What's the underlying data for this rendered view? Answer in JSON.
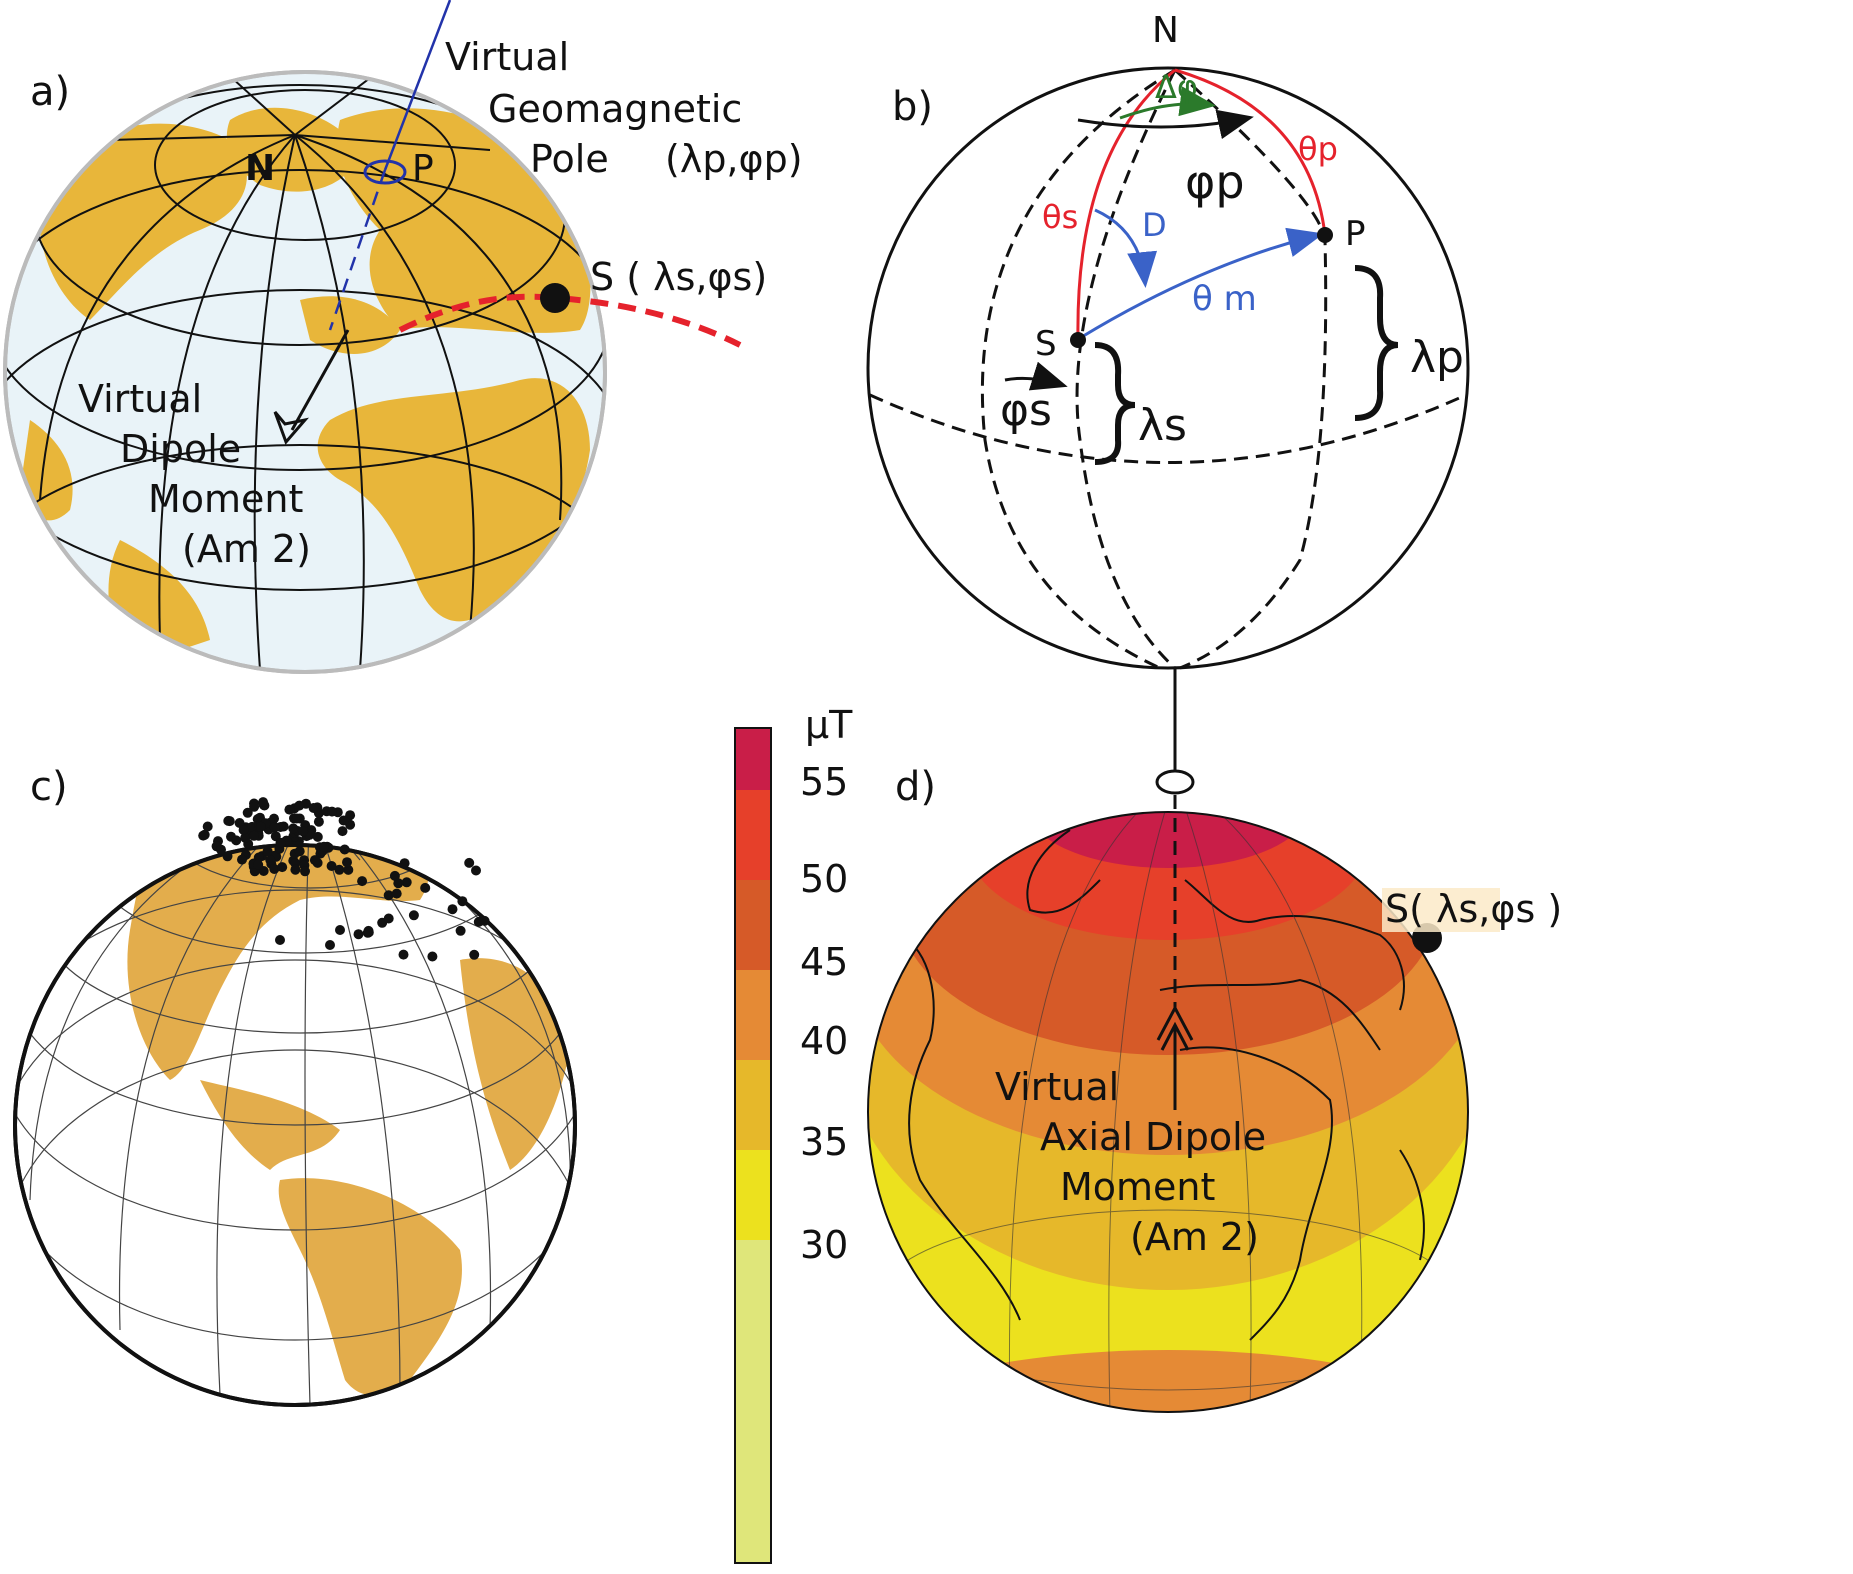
{
  "panels": {
    "a": {
      "label": "a)",
      "north": "N",
      "pole": "P",
      "vgp_line1": "Virtual",
      "vgp_line2": "Geomagnetic",
      "vgp_line3": "Pole",
      "vgp_coords": "(λp,φp)",
      "site": "S ( λs,φs)",
      "vdm_line1": "Virtual",
      "vdm_line2": "Dipole",
      "vdm_line3": "Moment",
      "vdm_line4": "(Am 2)"
    },
    "b": {
      "label": "b)",
      "north": "N",
      "pole": "P",
      "site": "S",
      "delta_phi": "Δφ",
      "phi_p": "φp",
      "theta_p": "θp",
      "theta_s": "θs",
      "declination": "D",
      "theta_m": "θ m",
      "lambda_p": "λp",
      "lambda_s": "λs",
      "phi_s": "φs"
    },
    "c": {
      "label": "c)"
    },
    "d": {
      "label": "d)",
      "site": "S( λs,φs )",
      "vadm_line1": "Virtual",
      "vadm_line2": "Axial Dipole",
      "vadm_line3": "Moment",
      "vadm_line4": "(Am 2)"
    }
  },
  "colorbar": {
    "unit": "μT",
    "ticks": [
      "55",
      "50",
      "45",
      "40",
      "35",
      "30"
    ],
    "colors": [
      "#c91e48",
      "#e6402a",
      "#d65a28",
      "#e58a35",
      "#e6b82a",
      "#ece11e",
      "#dfe67a"
    ]
  },
  "colors": {
    "land": "#e8b63a",
    "ocean": "#e9f3f8",
    "red_arc": "#e5222c",
    "blue_arc": "#3a62c8",
    "green_arc": "#2b7a2b",
    "pole_marker": "#2233aa"
  }
}
